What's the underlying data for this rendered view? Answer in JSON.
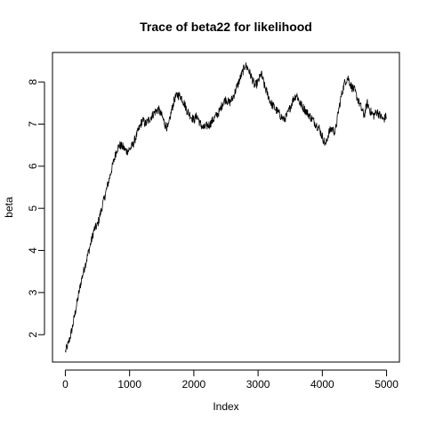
{
  "chart_data": {
    "type": "line",
    "title": "Trace of beta22 for likelihood",
    "xlabel": "Index",
    "ylabel": "beta",
    "xlim": [
      -200,
      5200
    ],
    "ylim": [
      1.35,
      8.7
    ],
    "x_ticks": [
      0,
      1000,
      2000,
      3000,
      4000,
      5000
    ],
    "y_ticks": [
      2,
      3,
      4,
      5,
      6,
      7,
      8
    ],
    "x_tick_labels": [
      "0",
      "1000",
      "2000",
      "3000",
      "4000",
      "5000"
    ],
    "y_tick_labels": [
      "2",
      "3",
      "4",
      "5",
      "6",
      "7",
      "8"
    ],
    "grid": false,
    "series": [
      {
        "x": [
          1,
          50,
          100,
          150,
          200,
          250,
          300,
          350,
          400,
          450,
          500,
          550,
          600,
          650,
          700,
          750,
          800,
          850,
          900,
          950,
          1000,
          1050,
          1100,
          1150,
          1200,
          1250,
          1300,
          1350,
          1400,
          1450,
          1500,
          1550,
          1600,
          1650,
          1700,
          1750,
          1800,
          1850,
          1900,
          1950,
          2000,
          2050,
          2100,
          2150,
          2200,
          2250,
          2300,
          2350,
          2400,
          2450,
          2500,
          2550,
          2600,
          2650,
          2700,
          2750,
          2800,
          2850,
          2900,
          2950,
          3000,
          3050,
          3100,
          3150,
          3200,
          3250,
          3300,
          3350,
          3400,
          3450,
          3500,
          3550,
          3600,
          3650,
          3700,
          3750,
          3800,
          3850,
          3900,
          3950,
          4000,
          4050,
          4100,
          4150,
          4200,
          4250,
          4300,
          4350,
          4400,
          4450,
          4500,
          4550,
          4600,
          4650,
          4700,
          4750,
          4800,
          4850,
          4900,
          4950,
          5000
        ],
        "y": [
          1.6,
          1.8,
          2.1,
          2.5,
          2.9,
          3.3,
          3.6,
          3.9,
          4.2,
          4.5,
          4.6,
          4.9,
          5.2,
          5.5,
          5.8,
          6.1,
          6.4,
          6.5,
          6.45,
          6.35,
          6.4,
          6.5,
          6.7,
          6.9,
          7.1,
          7.0,
          7.1,
          7.2,
          7.3,
          7.35,
          7.2,
          7.0,
          6.9,
          7.3,
          7.6,
          7.7,
          7.65,
          7.5,
          7.3,
          7.2,
          7.1,
          7.2,
          7.0,
          6.9,
          6.95,
          7.0,
          7.1,
          7.2,
          7.3,
          7.5,
          7.6,
          7.5,
          7.6,
          7.8,
          8.0,
          8.2,
          8.4,
          8.3,
          8.1,
          7.9,
          8.0,
          8.2,
          7.9,
          7.7,
          7.5,
          7.4,
          7.3,
          7.2,
          7.1,
          7.2,
          7.4,
          7.6,
          7.7,
          7.5,
          7.4,
          7.3,
          7.2,
          7.1,
          7.0,
          6.9,
          6.7,
          6.5,
          6.8,
          6.9,
          6.8,
          7.3,
          7.7,
          8.0,
          8.1,
          7.9,
          7.8,
          7.6,
          7.4,
          7.2,
          7.5,
          7.3,
          7.2,
          7.3,
          7.2,
          7.1,
          7.2
        ]
      }
    ]
  }
}
